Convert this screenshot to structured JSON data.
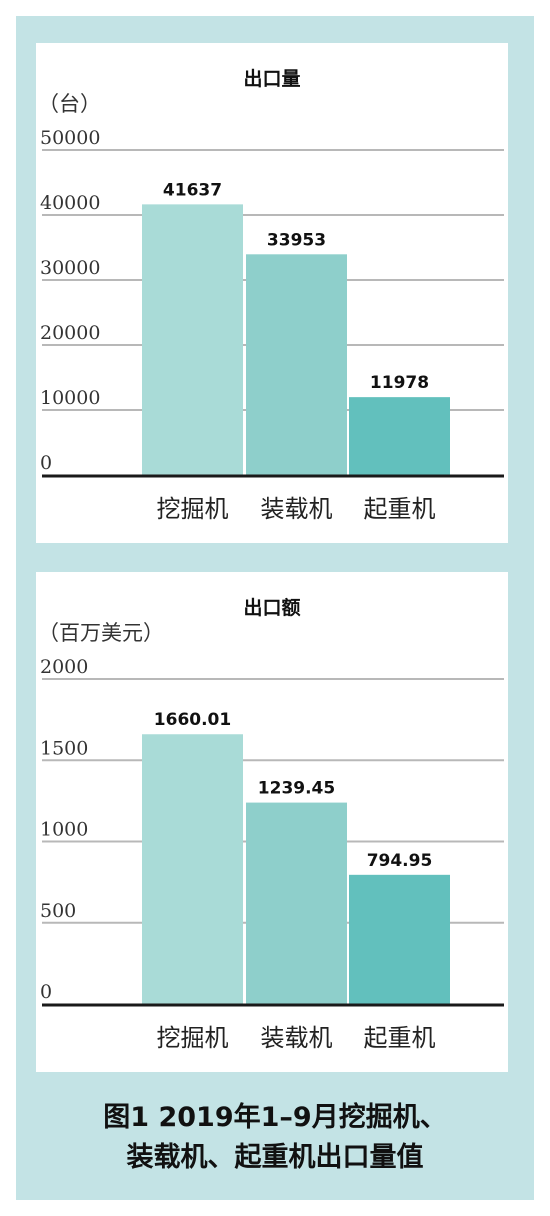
{
  "colors": {
    "frame": "#c3e3e5",
    "bars": [
      "#a9dbd7",
      "#8ecfcb",
      "#62c0bd"
    ],
    "grid": "#b8b8b8",
    "baseline": "#1a1a1a"
  },
  "chart_data": [
    {
      "type": "bar",
      "title": "出口量",
      "ylabel": "（台）",
      "categories": [
        "挖掘机",
        "装载机",
        "起重机"
      ],
      "values": [
        41637,
        33953,
        11978
      ],
      "value_labels": [
        "41637",
        "33953",
        "11978"
      ],
      "yticks": [
        "0",
        "10000",
        "20000",
        "30000",
        "40000",
        "50000"
      ],
      "ylim": [
        0,
        50000
      ],
      "grid": true
    },
    {
      "type": "bar",
      "title": "出口额",
      "ylabel": "（百万美元）",
      "categories": [
        "挖掘机",
        "装载机",
        "起重机"
      ],
      "values": [
        1660.01,
        1239.45,
        794.95
      ],
      "value_labels": [
        "1660.01",
        "1239.45",
        "794.95"
      ],
      "yticks": [
        "0",
        "500",
        "1000",
        "1500",
        "2000"
      ],
      "ylim": [
        0,
        2000
      ],
      "grid": true
    }
  ],
  "caption": {
    "line1": "图1 2019年1–9月挖掘机、",
    "line2": "装载机、起重机出口量值"
  }
}
